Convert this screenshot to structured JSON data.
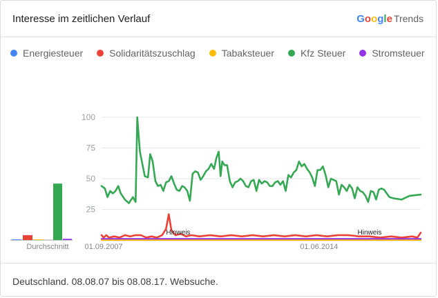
{
  "header": {
    "title": "Interesse im zeitlichen Verlauf",
    "brand": {
      "letters": [
        "G",
        "o",
        "o",
        "g",
        "l",
        "e"
      ],
      "letter_colors": [
        "#4285f4",
        "#ea4335",
        "#fbbc05",
        "#4285f4",
        "#34a853",
        "#ea4335"
      ],
      "suffix": "Trends"
    }
  },
  "footer": {
    "text": "Deutschland. 08.08.07 bis 08.08.17. Websuche."
  },
  "chart_data": {
    "type": "line",
    "yticks": [
      25,
      50,
      75,
      100
    ],
    "ylim": [
      0,
      100
    ],
    "xlim": [
      "2007-08-08",
      "2017-08-08"
    ],
    "xtick_labels": [
      {
        "label": "01.09.2007",
        "date": "2007-09-01"
      },
      {
        "label": "01.06.2014",
        "date": "2014-06-01"
      }
    ],
    "average_label": "Durchschnitt",
    "annotations": [
      {
        "label": "Hinweis",
        "date": "2010-01-01"
      },
      {
        "label": "Hinweis",
        "date": "2016-01-01"
      }
    ],
    "series": [
      {
        "name": "Energiesteuer",
        "color": "#4285f4",
        "average": 0,
        "points": [
          [
            "2007-08-08",
            0
          ],
          [
            "2017-08-08",
            0
          ]
        ]
      },
      {
        "name": "Solidaritätszuschlag",
        "color": "#ea4335",
        "average": 4,
        "points": [
          [
            "2007-08-08",
            4
          ],
          [
            "2007-09-01",
            2
          ],
          [
            "2007-10-01",
            4
          ],
          [
            "2007-11-01",
            2
          ],
          [
            "2008-01-01",
            3
          ],
          [
            "2008-03-01",
            2
          ],
          [
            "2008-05-01",
            4
          ],
          [
            "2008-07-01",
            3
          ],
          [
            "2008-09-01",
            4
          ],
          [
            "2008-11-01",
            4
          ],
          [
            "2009-01-01",
            2
          ],
          [
            "2009-03-01",
            3
          ],
          [
            "2009-05-01",
            2
          ],
          [
            "2009-07-01",
            4
          ],
          [
            "2009-08-15",
            9
          ],
          [
            "2009-09-15",
            21
          ],
          [
            "2009-10-15",
            8
          ],
          [
            "2009-12-01",
            4
          ],
          [
            "2010-02-01",
            5
          ],
          [
            "2010-04-01",
            3
          ],
          [
            "2010-06-01",
            4
          ],
          [
            "2010-09-01",
            3
          ],
          [
            "2011-01-01",
            4
          ],
          [
            "2011-05-01",
            3
          ],
          [
            "2011-09-01",
            4
          ],
          [
            "2012-01-01",
            3
          ],
          [
            "2012-05-01",
            4
          ],
          [
            "2012-09-01",
            3
          ],
          [
            "2013-01-01",
            4
          ],
          [
            "2013-05-01",
            3
          ],
          [
            "2013-09-01",
            4
          ],
          [
            "2014-01-01",
            3
          ],
          [
            "2014-05-01",
            4
          ],
          [
            "2014-09-01",
            3
          ],
          [
            "2015-01-01",
            4
          ],
          [
            "2015-05-01",
            4
          ],
          [
            "2015-09-01",
            3
          ],
          [
            "2016-01-01",
            3
          ],
          [
            "2016-05-01",
            2
          ],
          [
            "2016-09-01",
            3
          ],
          [
            "2017-01-01",
            2
          ],
          [
            "2017-05-01",
            3
          ],
          [
            "2017-07-01",
            2
          ],
          [
            "2017-08-08",
            6
          ]
        ]
      },
      {
        "name": "Tabaksteuer",
        "color": "#fbbc04",
        "average": 0,
        "points": [
          [
            "2007-08-08",
            0
          ],
          [
            "2017-08-08",
            0
          ]
        ]
      },
      {
        "name": "Kfz Steuer",
        "color": "#34a853",
        "average": 46,
        "points": [
          [
            "2007-08-08",
            44
          ],
          [
            "2007-09-15",
            42
          ],
          [
            "2007-10-15",
            35
          ],
          [
            "2007-11-15",
            40
          ],
          [
            "2007-12-15",
            38
          ],
          [
            "2008-01-15",
            40
          ],
          [
            "2008-02-15",
            44
          ],
          [
            "2008-03-15",
            38
          ],
          [
            "2008-05-01",
            33
          ],
          [
            "2008-06-15",
            30
          ],
          [
            "2008-08-01",
            35
          ],
          [
            "2008-09-01",
            31
          ],
          [
            "2008-09-20",
            100
          ],
          [
            "2008-10-20",
            72
          ],
          [
            "2008-12-15",
            52
          ],
          [
            "2009-01-20",
            51
          ],
          [
            "2009-02-15",
            70
          ],
          [
            "2009-03-15",
            64
          ],
          [
            "2009-04-15",
            48
          ],
          [
            "2009-05-15",
            44
          ],
          [
            "2009-06-15",
            45
          ],
          [
            "2009-07-15",
            40
          ],
          [
            "2009-08-15",
            47
          ],
          [
            "2009-09-15",
            48
          ],
          [
            "2009-10-15",
            52
          ],
          [
            "2009-11-15",
            46
          ],
          [
            "2009-12-15",
            41
          ],
          [
            "2010-01-15",
            40
          ],
          [
            "2010-02-15",
            44
          ],
          [
            "2010-03-15",
            43
          ],
          [
            "2010-04-15",
            40
          ],
          [
            "2010-05-15",
            32
          ],
          [
            "2010-06-15",
            54
          ],
          [
            "2010-07-15",
            56
          ],
          [
            "2010-08-15",
            55
          ],
          [
            "2010-09-15",
            49
          ],
          [
            "2010-10-15",
            52
          ],
          [
            "2010-11-15",
            56
          ],
          [
            "2010-12-15",
            58
          ],
          [
            "2011-01-15",
            62
          ],
          [
            "2011-02-15",
            58
          ],
          [
            "2011-03-15",
            67
          ],
          [
            "2011-04-10",
            72
          ],
          [
            "2011-05-01",
            52
          ],
          [
            "2011-05-20",
            64
          ],
          [
            "2011-06-15",
            61
          ],
          [
            "2011-07-15",
            61
          ],
          [
            "2011-08-15",
            48
          ],
          [
            "2011-09-15",
            43
          ],
          [
            "2011-10-15",
            47
          ],
          [
            "2011-11-15",
            48
          ],
          [
            "2011-12-15",
            50
          ],
          [
            "2012-01-15",
            48
          ],
          [
            "2012-02-15",
            44
          ],
          [
            "2012-03-15",
            43
          ],
          [
            "2012-04-15",
            48
          ],
          [
            "2012-05-15",
            49
          ],
          [
            "2012-06-15",
            40
          ],
          [
            "2012-07-15",
            49
          ],
          [
            "2012-08-15",
            46
          ],
          [
            "2012-09-15",
            48
          ],
          [
            "2012-10-15",
            47
          ],
          [
            "2012-11-15",
            44
          ],
          [
            "2012-12-15",
            44
          ],
          [
            "2013-01-15",
            47
          ],
          [
            "2013-02-15",
            48
          ],
          [
            "2013-03-15",
            45
          ],
          [
            "2013-04-15",
            48
          ],
          [
            "2013-05-15",
            40
          ],
          [
            "2013-06-15",
            53
          ],
          [
            "2013-07-15",
            51
          ],
          [
            "2013-08-15",
            55
          ],
          [
            "2013-09-15",
            57
          ],
          [
            "2013-10-15",
            64
          ],
          [
            "2013-11-15",
            60
          ],
          [
            "2013-12-15",
            62
          ],
          [
            "2014-01-15",
            58
          ],
          [
            "2014-02-15",
            55
          ],
          [
            "2014-03-15",
            51
          ],
          [
            "2014-04-15",
            44
          ],
          [
            "2014-05-15",
            57
          ],
          [
            "2014-06-15",
            57
          ],
          [
            "2014-07-15",
            60
          ],
          [
            "2014-08-15",
            53
          ],
          [
            "2014-09-15",
            43
          ],
          [
            "2014-10-15",
            50
          ],
          [
            "2014-11-15",
            49
          ],
          [
            "2014-12-15",
            48
          ],
          [
            "2015-01-15",
            37
          ],
          [
            "2015-02-15",
            45
          ],
          [
            "2015-03-15",
            43
          ],
          [
            "2015-04-15",
            40
          ],
          [
            "2015-05-15",
            45
          ],
          [
            "2015-06-15",
            42
          ],
          [
            "2015-07-15",
            34
          ],
          [
            "2015-08-15",
            43
          ],
          [
            "2015-09-15",
            40
          ],
          [
            "2015-10-15",
            39
          ],
          [
            "2015-11-15",
            36
          ],
          [
            "2015-12-15",
            31
          ],
          [
            "2016-01-15",
            40
          ],
          [
            "2016-02-15",
            39
          ],
          [
            "2016-03-15",
            33
          ],
          [
            "2016-04-15",
            41
          ],
          [
            "2016-05-15",
            42
          ],
          [
            "2016-06-15",
            41
          ],
          [
            "2016-07-15",
            38
          ],
          [
            "2016-08-15",
            35
          ],
          [
            "2016-10-01",
            34
          ],
          [
            "2017-01-01",
            33
          ],
          [
            "2017-04-01",
            36
          ],
          [
            "2017-08-08",
            37
          ]
        ]
      },
      {
        "name": "Stromsteuer",
        "color": "#9334e6",
        "average": 1,
        "points": [
          [
            "2007-08-08",
            1
          ],
          [
            "2017-08-08",
            1
          ]
        ]
      }
    ]
  }
}
